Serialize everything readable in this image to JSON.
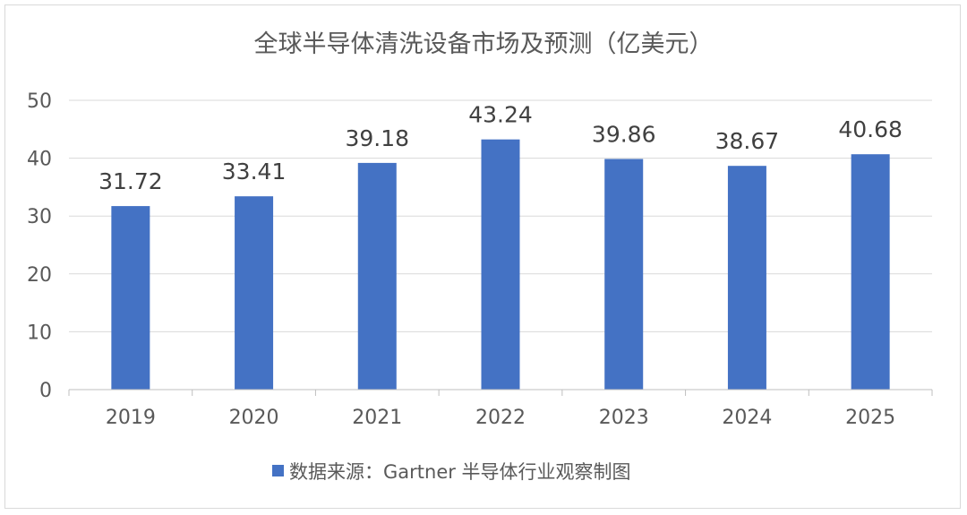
{
  "chart_data": {
    "type": "bar",
    "title": "全球半导体清洗设备市场及预测（亿美元）",
    "categories": [
      "2019",
      "2020",
      "2021",
      "2022",
      "2023",
      "2024",
      "2025"
    ],
    "series": [
      {
        "name": "数据来源：Gartner  半导体行业观察制图",
        "color": "#4472c4",
        "values": [
          31.72,
          33.41,
          39.18,
          43.24,
          39.86,
          38.67,
          40.68
        ]
      }
    ],
    "data_labels": [
      "31.72",
      "33.41",
      "39.18",
      "43.24",
      "39.86",
      "38.67",
      "40.68"
    ],
    "ylim": [
      0,
      50
    ],
    "yticks": [
      0,
      10,
      20,
      30,
      40,
      50
    ],
    "grid": true,
    "legend_position": "bottom",
    "xlabel": "",
    "ylabel": ""
  }
}
